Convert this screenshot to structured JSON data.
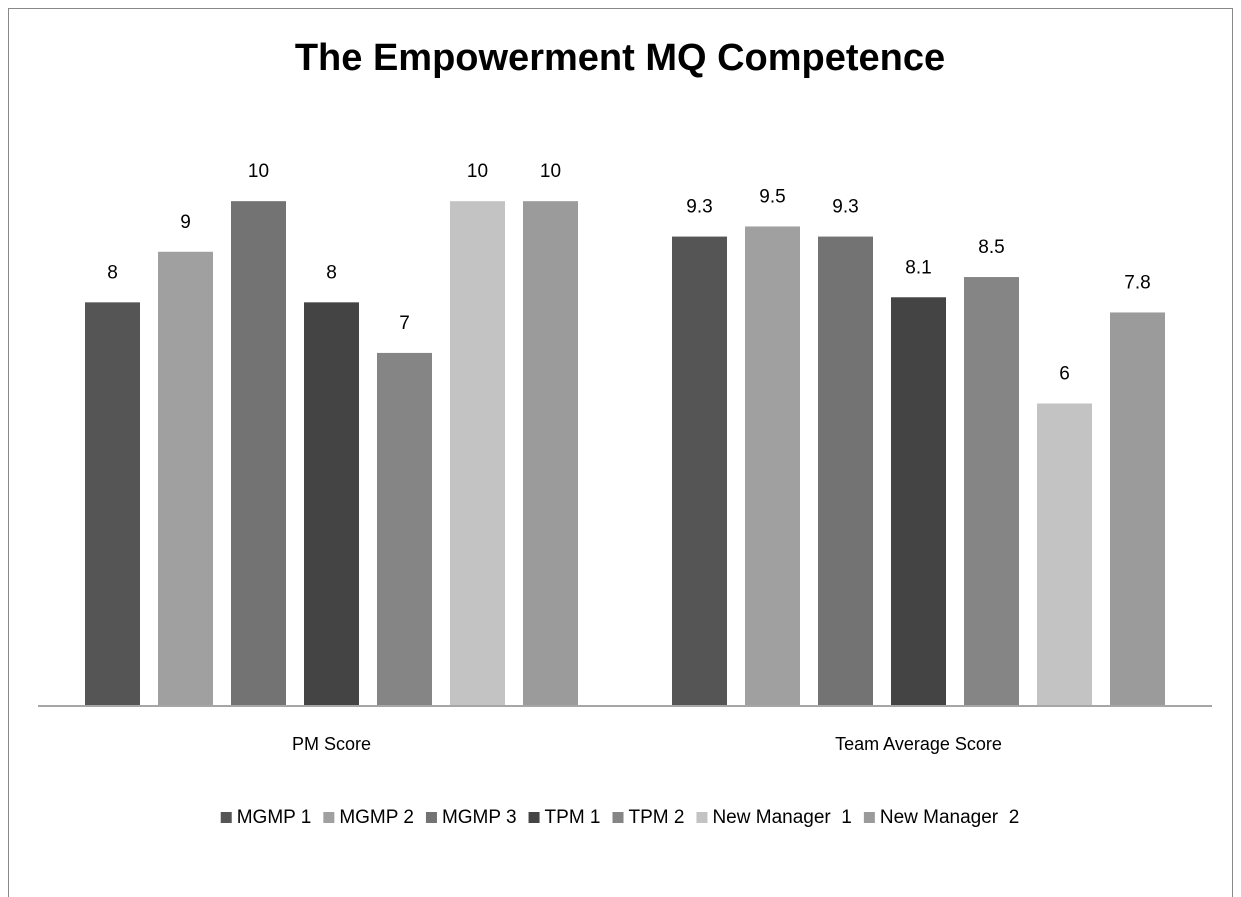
{
  "chart_data": {
    "type": "bar",
    "title": "The Empowerment MQ Competence",
    "categories": [
      "PM Score",
      "Team Average Score"
    ],
    "series": [
      {
        "name": "MGMP 1",
        "color": "#555555",
        "values": [
          8,
          9.3
        ]
      },
      {
        "name": "MGMP 2",
        "color": "#a0a0a0",
        "values": [
          9,
          9.5
        ]
      },
      {
        "name": "MGMP 3",
        "color": "#737373",
        "values": [
          10,
          9.3
        ]
      },
      {
        "name": "TPM 1",
        "color": "#444444",
        "values": [
          8,
          8.1
        ]
      },
      {
        "name": "TPM 2",
        "color": "#858585",
        "values": [
          7,
          8.5
        ]
      },
      {
        "name": "New Manager  1",
        "color": "#c3c3c3",
        "values": [
          10,
          6
        ]
      },
      {
        "name": "New Manager  2",
        "color": "#9b9b9b",
        "values": [
          10,
          7.8
        ]
      }
    ],
    "ylim": [
      0,
      12
    ],
    "legend": "bottom"
  }
}
